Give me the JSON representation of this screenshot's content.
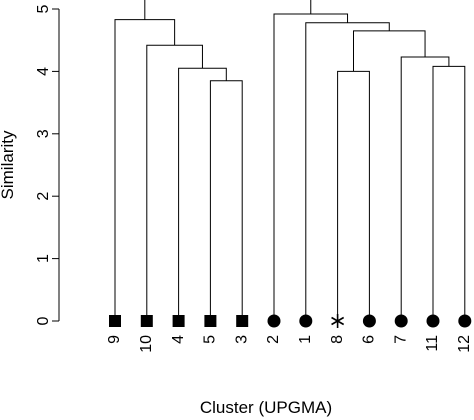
{
  "chart_data": {
    "type": "dendrogram",
    "title": "",
    "xlabel": "Cluster (UPGMA)",
    "ylabel": "Similarity",
    "ylim": [
      0,
      5
    ],
    "y_ticks": [
      "0",
      "1",
      "2",
      "3",
      "4",
      "5"
    ],
    "leaves": [
      {
        "label": "9",
        "marker": "square"
      },
      {
        "label": "10",
        "marker": "square"
      },
      {
        "label": "4",
        "marker": "square"
      },
      {
        "label": "5",
        "marker": "square"
      },
      {
        "label": "3",
        "marker": "square"
      },
      {
        "label": "2",
        "marker": "circle"
      },
      {
        "label": "1",
        "marker": "circle"
      },
      {
        "label": "8",
        "marker": "asterisk"
      },
      {
        "label": "6",
        "marker": "circle"
      },
      {
        "label": "7",
        "marker": "circle"
      },
      {
        "label": "11",
        "marker": "circle"
      },
      {
        "label": "12",
        "marker": "circle"
      }
    ],
    "merges": [
      {
        "left": "leaf:5",
        "right": "leaf:3",
        "height": 3.85
      },
      {
        "left": "leaf:4",
        "right": "node:0",
        "height": 4.05
      },
      {
        "left": "leaf:10",
        "right": "node:1",
        "height": 4.42
      },
      {
        "left": "leaf:9",
        "right": "node:2",
        "height": 4.83
      },
      {
        "left": "leaf:8",
        "right": "leaf:6",
        "height": 4.0
      },
      {
        "left": "leaf:11",
        "right": "leaf:12",
        "height": 4.08
      },
      {
        "left": "leaf:7",
        "right": "node:5",
        "height": 4.23
      },
      {
        "left": "node:4",
        "right": "node:6",
        "height": 4.65
      },
      {
        "left": "leaf:1",
        "right": "node:7",
        "height": 4.78
      },
      {
        "left": "leaf:2",
        "right": "node:8",
        "height": 4.92
      },
      {
        "left": "node:3",
        "right": "node:9",
        "height": 5.3
      }
    ]
  }
}
